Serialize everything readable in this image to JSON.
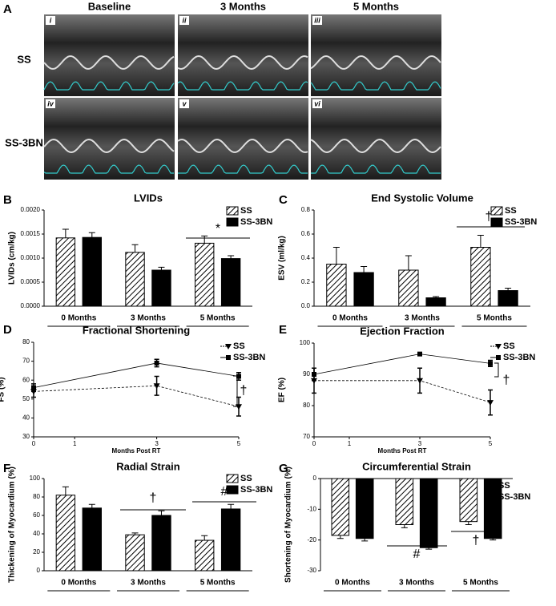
{
  "panel_a": {
    "label": "A",
    "columns": [
      "Baseline",
      "3 Months",
      "5 Months"
    ],
    "rows": [
      "SS",
      "SS-3BN"
    ],
    "panels": [
      "i",
      "ii",
      "iii",
      "iv",
      "v",
      "vi"
    ]
  },
  "chart_data": [
    {
      "type": "bar",
      "label": "B",
      "title": "LVIDs",
      "ylabel": "LVIDs (cm/kg)",
      "categories": [
        "0 Months",
        "3 Months",
        "5 Months"
      ],
      "series": [
        {
          "name": "SS",
          "color": "#000000",
          "hatch": true,
          "values": [
            0.00142,
            0.00112,
            0.00131
          ],
          "errors": [
            0.00018,
            0.00016,
            0.00015
          ]
        },
        {
          "name": "SS-3BN",
          "color": "#000000",
          "hatch": false,
          "values": [
            0.00143,
            0.00075,
            0.00099
          ],
          "errors": [
            0.0001,
            6e-05,
            6e-05
          ]
        }
      ],
      "ylim": [
        0,
        0.002
      ],
      "yticks": [
        {
          "value": 0,
          "label": "0.0000"
        },
        {
          "value": 0.0005,
          "label": "0.0005"
        },
        {
          "value": 0.001,
          "label": "0.0010"
        },
        {
          "value": 0.0015,
          "label": "0.0015"
        },
        {
          "value": 0.002,
          "label": "0.0020"
        }
      ],
      "annotations": [
        "*"
      ]
    },
    {
      "type": "bar",
      "label": "C",
      "title": "End Systolic Volume",
      "ylabel": "ESV (ml/kg)",
      "categories": [
        "0 Months",
        "3 Months",
        "5 Months"
      ],
      "series": [
        {
          "name": "SS",
          "color": "#000000",
          "hatch": true,
          "values": [
            0.35,
            0.3,
            0.49
          ],
          "errors": [
            0.14,
            0.12,
            0.1
          ]
        },
        {
          "name": "SS-3BN",
          "color": "#000000",
          "hatch": false,
          "values": [
            0.28,
            0.07,
            0.13
          ],
          "errors": [
            0.05,
            0.01,
            0.02
          ]
        }
      ],
      "ylim": [
        0,
        0.8
      ],
      "yticks": [
        {
          "value": 0,
          "label": "0.0"
        },
        {
          "value": 0.2,
          "label": "0.2"
        },
        {
          "value": 0.4,
          "label": "0.4"
        },
        {
          "value": 0.6,
          "label": "0.6"
        },
        {
          "value": 0.8,
          "label": "0.8"
        }
      ],
      "annotations": [
        "†"
      ]
    },
    {
      "type": "line",
      "label": "D",
      "title": "Fractional Shortening",
      "ylabel": "FS (%)",
      "xlabel": "Months Post RT",
      "x": [
        0,
        3,
        5
      ],
      "series": [
        {
          "name": "SS",
          "color": "#000000",
          "dashed": true,
          "marker": "triangle",
          "values": [
            54,
            57,
            46
          ],
          "errors": [
            3,
            5,
            5
          ]
        },
        {
          "name": "SS-3BN",
          "color": "#000000",
          "dashed": false,
          "marker": "square",
          "values": [
            56,
            69,
            62
          ],
          "errors": [
            2,
            2,
            2
          ]
        }
      ],
      "xlim": [
        0,
        5
      ],
      "xticks": [
        0,
        1,
        3,
        5
      ],
      "ylim": [
        30,
        80
      ],
      "yticks": [
        30,
        40,
        50,
        60,
        70,
        80
      ],
      "annotations": [
        "†"
      ]
    },
    {
      "type": "line",
      "label": "E",
      "title": "Ejection Fraction",
      "ylabel": "EF (%)",
      "xlabel": "Months Post RT",
      "x": [
        0,
        3,
        5
      ],
      "series": [
        {
          "name": "SS",
          "color": "#000000",
          "dashed": true,
          "marker": "triangle",
          "values": [
            88,
            88,
            81
          ],
          "errors": [
            4,
            4,
            4
          ]
        },
        {
          "name": "SS-3BN",
          "color": "#000000",
          "dashed": false,
          "marker": "square",
          "values": [
            90,
            96.5,
            93.5
          ],
          "errors": [
            2,
            0.5,
            1
          ]
        }
      ],
      "xlim": [
        0,
        5
      ],
      "xticks": [
        0,
        1,
        3,
        5
      ],
      "ylim": [
        70,
        100
      ],
      "yticks": [
        70,
        80,
        90,
        100
      ],
      "annotations": [
        "†"
      ]
    },
    {
      "type": "bar",
      "label": "F",
      "title": "Radial Strain",
      "ylabel": "Thickening of Myocardium (%)",
      "categories": [
        "0 Months",
        "3 Months",
        "5 Months"
      ],
      "series": [
        {
          "name": "SS",
          "color": "#000000",
          "hatch": true,
          "values": [
            82,
            39,
            33
          ],
          "errors": [
            9,
            2,
            5
          ]
        },
        {
          "name": "SS-3BN",
          "color": "#000000",
          "hatch": false,
          "values": [
            68,
            60,
            67
          ],
          "errors": [
            4,
            5,
            5
          ]
        }
      ],
      "ylim": [
        0,
        100
      ],
      "yticks": [
        0,
        20,
        40,
        60,
        80,
        100
      ],
      "annotations": [
        "†",
        "#"
      ]
    },
    {
      "type": "bar",
      "label": "G",
      "title": "Circumferential Strain",
      "ylabel": "Shortening of Myocardium (%)",
      "categories": [
        "0 Months",
        "3 Months",
        "5 Months"
      ],
      "series": [
        {
          "name": "SS",
          "color": "#000000",
          "hatch": true,
          "values": [
            -18.5,
            -15,
            -14
          ],
          "errors": [
            1,
            1,
            1
          ]
        },
        {
          "name": "SS-3BN",
          "color": "#000000",
          "hatch": false,
          "values": [
            -19.5,
            -22.5,
            -19.5
          ],
          "errors": [
            0.8,
            0.5,
            0.5
          ]
        }
      ],
      "ylim": [
        -30,
        0
      ],
      "yticks": [
        -30,
        -20,
        -10,
        0
      ],
      "annotations": [
        "#",
        "†"
      ]
    }
  ]
}
